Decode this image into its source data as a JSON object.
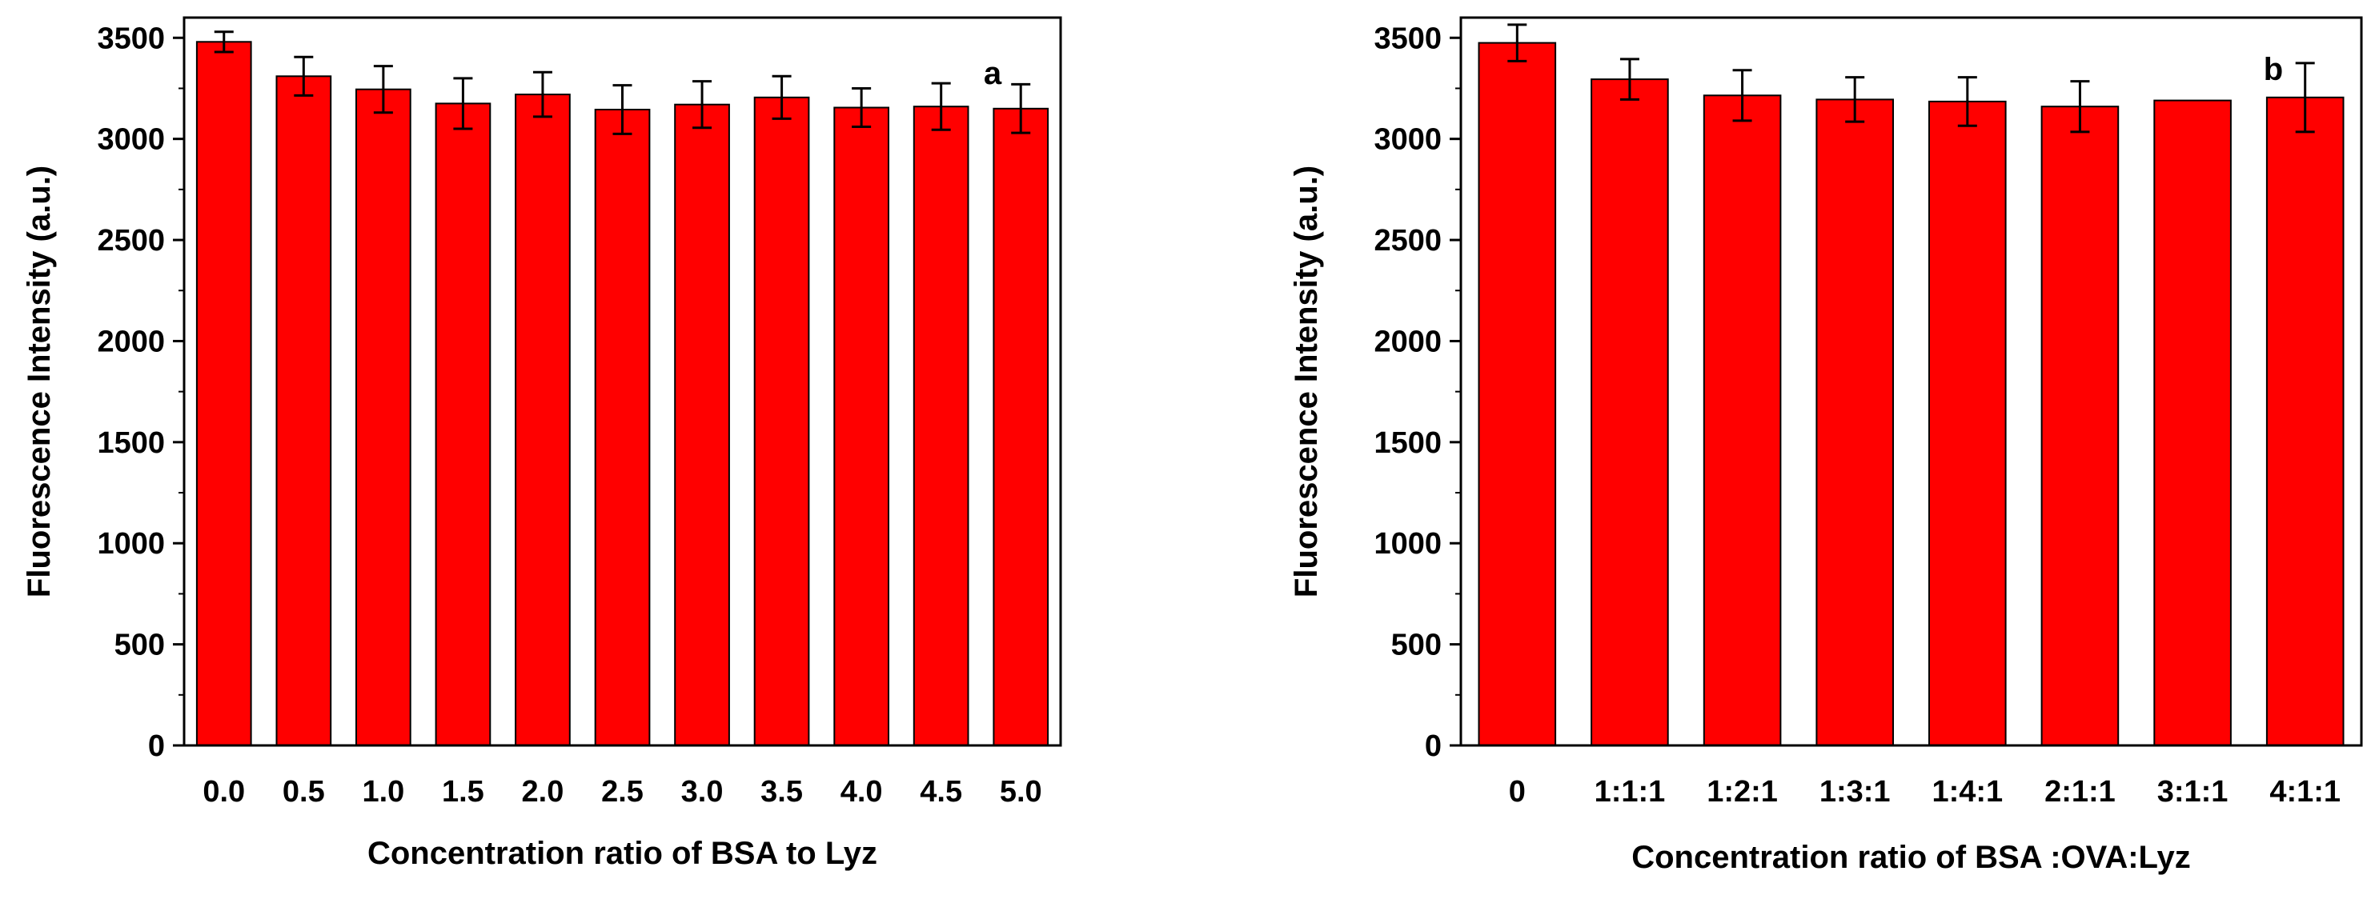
{
  "colors": {
    "bar": "#ff0000",
    "axis": "#000000",
    "background": "#ffffff"
  },
  "chart_data": [
    {
      "type": "bar",
      "panel_label": "a",
      "title": "",
      "xlabel": "Concentration ratio of BSA to Lyz",
      "ylabel": "Fluorescence Intensity (a.u.)",
      "ylim": [
        0,
        3600
      ],
      "yticks": [
        0,
        500,
        1000,
        1500,
        2000,
        2500,
        3000,
        3500
      ],
      "ytick_labels": [
        "0",
        "500",
        "1000",
        "1500",
        "2000",
        "2500",
        "3000",
        "3500"
      ],
      "categories": [
        "0.0",
        "0.5",
        "1.0",
        "1.5",
        "2.0",
        "2.5",
        "3.0",
        "3.5",
        "4.0",
        "4.5",
        "5.0"
      ],
      "values": [
        3480,
        3310,
        3245,
        3175,
        3220,
        3145,
        3170,
        3205,
        3155,
        3160,
        3150
      ],
      "errors": [
        50,
        95,
        115,
        125,
        110,
        120,
        115,
        105,
        95,
        115,
        120
      ],
      "grid": false,
      "legend": "none"
    },
    {
      "type": "bar",
      "panel_label": "b",
      "title": "",
      "xlabel": "Concentration ratio of BSA :OVA:Lyz",
      "ylabel": "Fluorescence Intensity (a.u.)",
      "ylim": [
        0,
        3600
      ],
      "yticks": [
        0,
        500,
        1000,
        1500,
        2000,
        2500,
        3000,
        3500
      ],
      "ytick_labels": [
        "0",
        "500",
        "1000",
        "1500",
        "2000",
        "2500",
        "3000",
        "3500"
      ],
      "categories": [
        "0",
        "1:1:1",
        "1:2:1",
        "1:3:1",
        "1:4:1",
        "2:1:1",
        "3:1:1",
        "4:1:1"
      ],
      "values": [
        3475,
        3295,
        3215,
        3195,
        3185,
        3160,
        3190,
        3205
      ],
      "errors": [
        90,
        100,
        125,
        110,
        120,
        125,
        0,
        170
      ],
      "grid": false,
      "legend": "none"
    }
  ]
}
